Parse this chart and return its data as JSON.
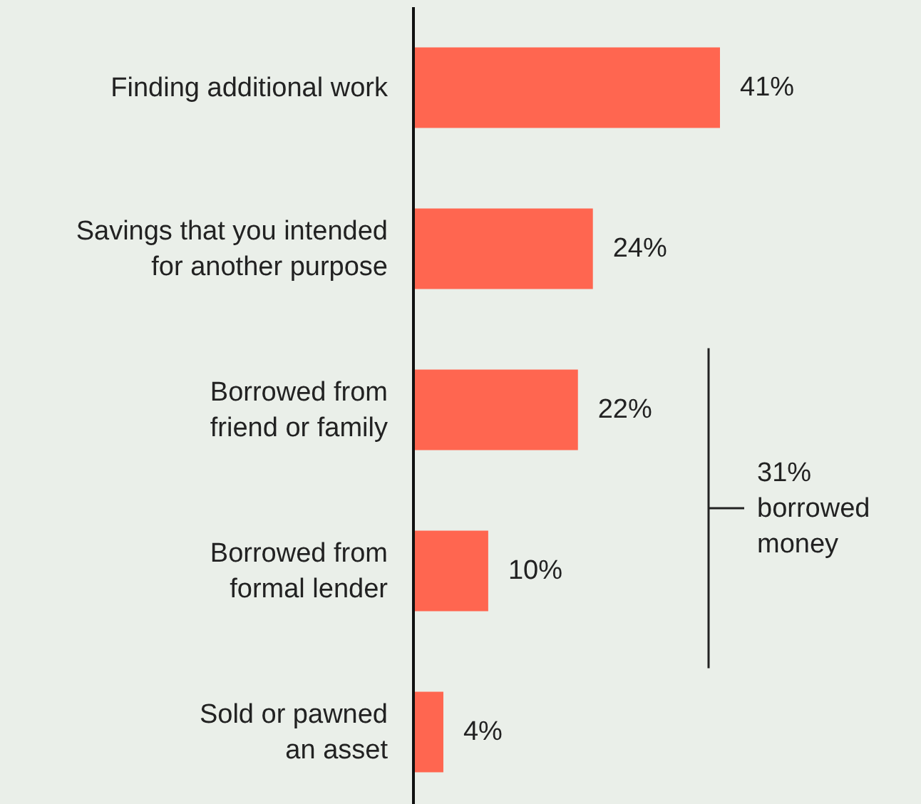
{
  "chart_data": {
    "type": "bar",
    "orientation": "horizontal",
    "categories": [
      "Finding additional work",
      "Savings that you intended\nfor another purpose",
      "Borrowed from\nfriend or family",
      "Borrowed from\nformal lender",
      "Sold or pawned\nan asset"
    ],
    "values": [
      41,
      24,
      22,
      10,
      4
    ],
    "value_labels": [
      "41%",
      "24%",
      "22%",
      "10%",
      "4%"
    ],
    "color": "#ff6650",
    "annotations": [
      "31% borrowed money"
    ]
  }
}
